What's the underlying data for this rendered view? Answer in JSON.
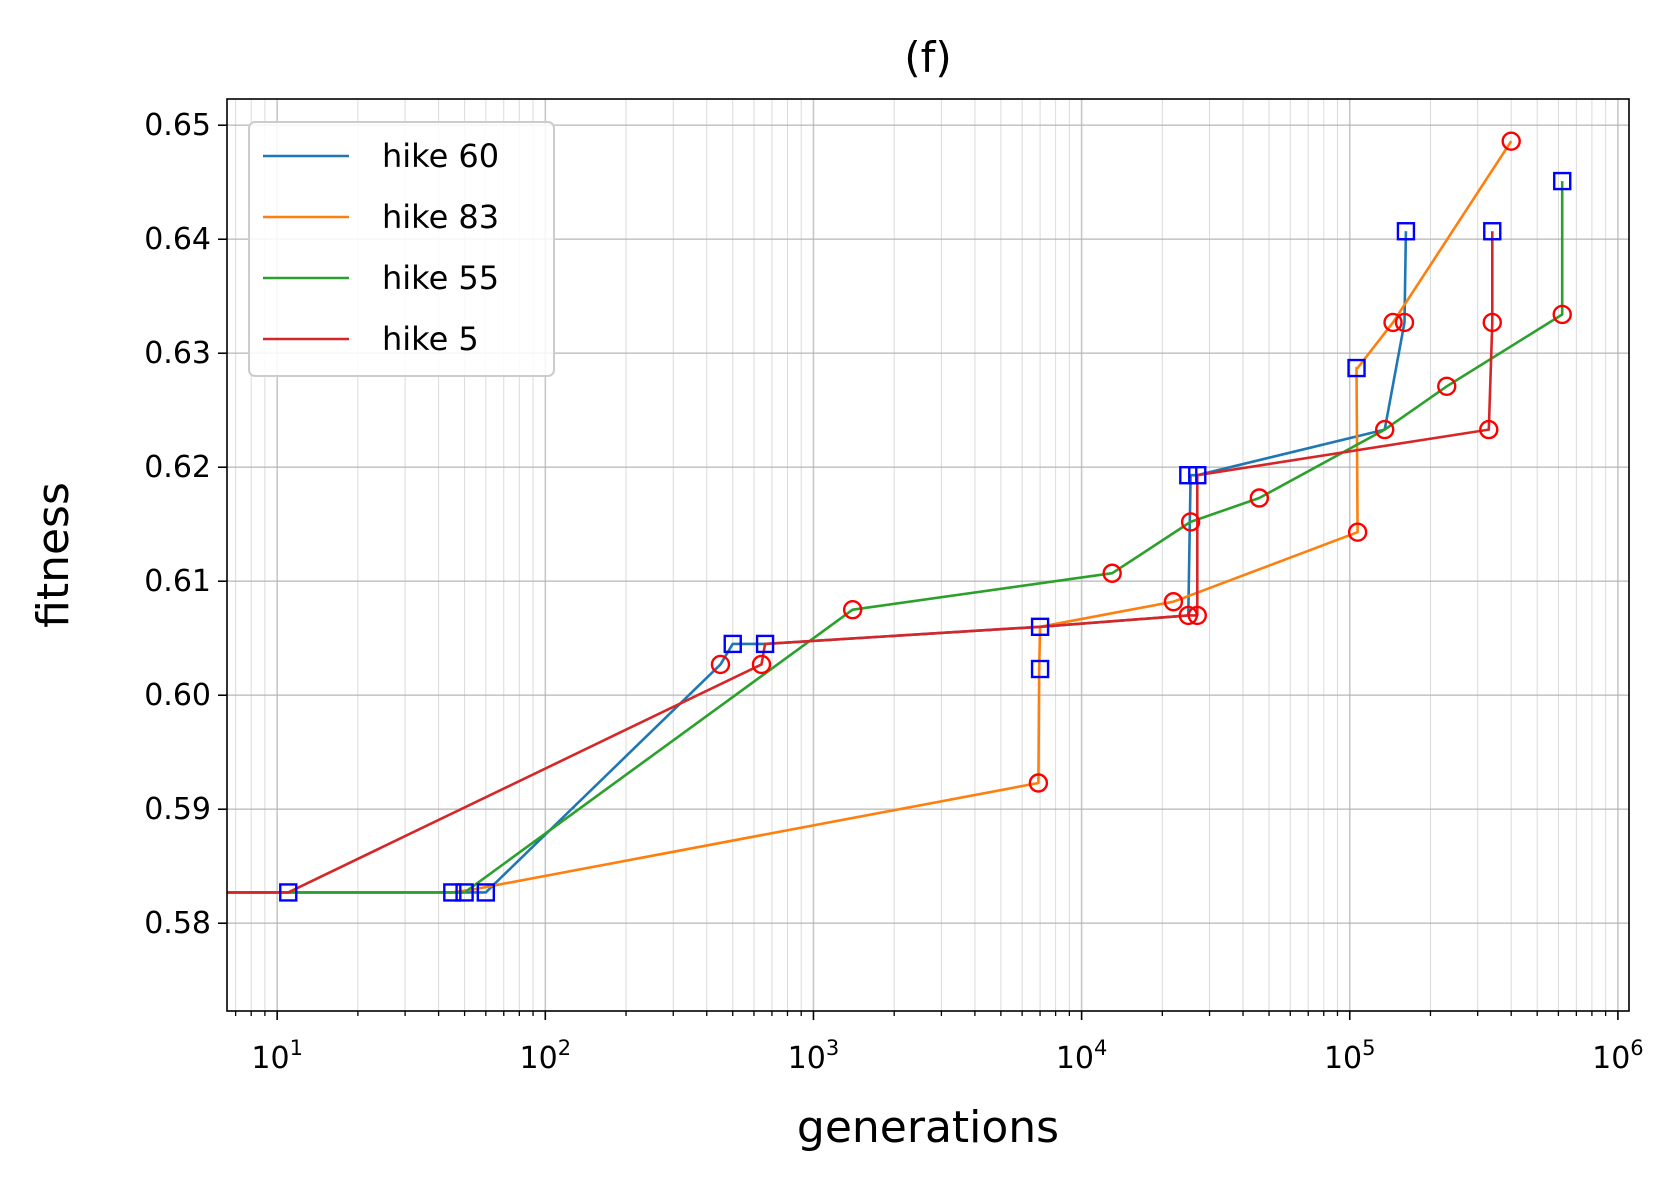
{
  "chart_data": {
    "type": "line",
    "title": "(f)",
    "xlabel": "generations",
    "ylabel": "fitness",
    "xscale": "log",
    "xlim": [
      6.5,
      1100000
    ],
    "ylim": [
      0.5723,
      0.6523
    ],
    "grid": true,
    "legend_position": "top-left",
    "x_ticks": [
      {
        "value": 10,
        "base": "10",
        "exp": "1"
      },
      {
        "value": 100,
        "base": "10",
        "exp": "2"
      },
      {
        "value": 1000,
        "base": "10",
        "exp": "3"
      },
      {
        "value": 10000,
        "base": "10",
        "exp": "4"
      },
      {
        "value": 100000,
        "base": "10",
        "exp": "5"
      },
      {
        "value": 1000000,
        "base": "10",
        "exp": "6"
      }
    ],
    "y_ticks": [
      {
        "value": 0.58,
        "label": "0.58"
      },
      {
        "value": 0.59,
        "label": "0.59"
      },
      {
        "value": 0.6,
        "label": "0.60"
      },
      {
        "value": 0.61,
        "label": "0.61"
      },
      {
        "value": 0.62,
        "label": "0.62"
      },
      {
        "value": 0.63,
        "label": "0.63"
      },
      {
        "value": 0.64,
        "label": "0.64"
      },
      {
        "value": 0.65,
        "label": "0.65"
      }
    ],
    "series": [
      {
        "name": "hike 60",
        "color": "#1f77b4",
        "x": [
          0.1,
          60,
          450,
          500,
          660,
          7000,
          25000,
          25500,
          27000,
          135000,
          160000,
          162000
        ],
        "y": [
          0.5827,
          0.5827,
          0.6027,
          0.6045,
          0.6045,
          0.606,
          0.607,
          0.6193,
          0.6193,
          0.6233,
          0.6327,
          0.6407
        ]
      },
      {
        "name": "hike 83",
        "color": "#ff7f0e",
        "x": [
          0.1,
          45,
          55,
          6900,
          6950,
          7000,
          22000,
          107000,
          106000,
          107000,
          145000,
          400000
        ],
        "y": [
          0.5827,
          0.5827,
          0.583,
          0.5923,
          0.6023,
          0.606,
          0.6082,
          0.6143,
          0.6287,
          0.6287,
          0.6327,
          0.6486
        ]
      },
      {
        "name": "hike 55",
        "color": "#2ca02c",
        "x": [
          0.1,
          50,
          1400,
          13000,
          25500,
          46000,
          135000,
          230000,
          620000,
          620000
        ],
        "y": [
          0.5827,
          0.5827,
          0.6075,
          0.6107,
          0.6152,
          0.6173,
          0.6233,
          0.6271,
          0.6334,
          0.6451
        ]
      },
      {
        "name": "hike 5",
        "color": "#d62728",
        "x": [
          0.1,
          11,
          640,
          660,
          7000,
          25000,
          27000,
          27000,
          330000,
          340000,
          340000
        ],
        "y": [
          0.5827,
          0.5827,
          0.6027,
          0.6045,
          0.606,
          0.607,
          0.607,
          0.6193,
          0.6233,
          0.6327,
          0.6407
        ]
      }
    ],
    "circle_markers": {
      "color": "#ff0000",
      "points": [
        [
          450,
          0.6027
        ],
        [
          640,
          0.6027
        ],
        [
          1400,
          0.6075
        ],
        [
          6900,
          0.5923
        ],
        [
          13000,
          0.6107
        ],
        [
          22000,
          0.6082
        ],
        [
          25000,
          0.607
        ],
        [
          27000,
          0.607
        ],
        [
          25500,
          0.6152
        ],
        [
          46000,
          0.6173
        ],
        [
          107000,
          0.6143
        ],
        [
          135000,
          0.6233
        ],
        [
          145000,
          0.6327
        ],
        [
          160000,
          0.6327
        ],
        [
          230000,
          0.6271
        ],
        [
          330000,
          0.6233
        ],
        [
          340000,
          0.6327
        ],
        [
          400000,
          0.6486
        ],
        [
          620000,
          0.6334
        ]
      ]
    },
    "square_markers": {
      "color": "#0000ff",
      "points": [
        [
          11,
          0.5827
        ],
        [
          45,
          0.5827
        ],
        [
          50,
          0.5827
        ],
        [
          60,
          0.5827
        ],
        [
          500,
          0.6045
        ],
        [
          660,
          0.6045
        ],
        [
          7000,
          0.606
        ],
        [
          7000,
          0.6023
        ],
        [
          25000,
          0.6193
        ],
        [
          27000,
          0.6193
        ],
        [
          106000,
          0.6287
        ],
        [
          162000,
          0.6407
        ],
        [
          340000,
          0.6407
        ],
        [
          620000,
          0.6451
        ]
      ]
    }
  }
}
